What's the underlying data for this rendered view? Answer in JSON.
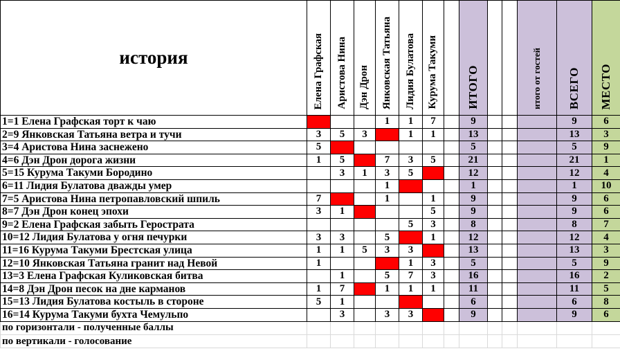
{
  "title": "история",
  "voters": [
    "Елена Графская",
    "Аристова Нина",
    "Дэн Дрон",
    "Янковская Татьяна",
    "Лидия Булатова",
    "Курума Такуми"
  ],
  "columns": {
    "itogo": "ИТОГО",
    "guests": "итого от гостей",
    "vsego": "ВСЕГО",
    "mesto": "МЕСТО"
  },
  "rows": [
    {
      "label": "1=1 Елена Графская торт к чаю",
      "votes": [
        "RED",
        "",
        "",
        "1",
        "1",
        "7"
      ],
      "itogo": "9",
      "guests": "",
      "vsego": "9",
      "mesto": "6"
    },
    {
      "label": "2=9 Янковская Татьяна ветра и тучи",
      "votes": [
        "3",
        "5",
        "3",
        "RED",
        "1",
        "1"
      ],
      "itogo": "13",
      "guests": "",
      "vsego": "13",
      "mesto": "3"
    },
    {
      "label": "3=4 Аристова Нина заснежено",
      "votes": [
        "5",
        "RED",
        "",
        "",
        "",
        ""
      ],
      "itogo": "5",
      "guests": "",
      "vsego": "5",
      "mesto": "9"
    },
    {
      "label": "4=6 Дэн Дрон дорога жизни",
      "votes": [
        "1",
        "5",
        "RED",
        "7",
        "3",
        "5"
      ],
      "itogo": "21",
      "guests": "",
      "vsego": "21",
      "mesto": "1"
    },
    {
      "label": "5=15 Курума Такуми Бородино",
      "votes": [
        "",
        "3",
        "1",
        "3",
        "5",
        "RED"
      ],
      "itogo": "12",
      "guests": "",
      "vsego": "12",
      "mesto": "4"
    },
    {
      "label": "6=11 Лидия Булатова дважды умер",
      "votes": [
        "",
        "",
        "",
        "1",
        "RED",
        ""
      ],
      "itogo": "1",
      "guests": "",
      "vsego": "1",
      "mesto": "10"
    },
    {
      "label": "7=5 Аристова Нина петропавловский шпиль",
      "votes": [
        "7",
        "RED",
        "",
        "1",
        "",
        "1"
      ],
      "itogo": "9",
      "guests": "",
      "vsego": "9",
      "mesto": "6"
    },
    {
      "label": "8=7 Дэн Дрон конец эпохи",
      "votes": [
        "3",
        "1",
        "RED",
        "",
        "",
        "5"
      ],
      "itogo": "9",
      "guests": "",
      "vsego": "9",
      "mesto": "6"
    },
    {
      "label": "9=2 Елена Графская забыть Герострата",
      "votes": [
        "",
        "",
        "",
        "",
        "5",
        "3"
      ],
      "itogo": "8",
      "guests": "",
      "vsego": "8",
      "mesto": "7"
    },
    {
      "label": "10=12 Лидия Булатова у огня печурки",
      "votes": [
        "3",
        "3",
        "",
        "5",
        "RED",
        "1"
      ],
      "itogo": "12",
      "guests": "",
      "vsego": "12",
      "mesto": "4"
    },
    {
      "label": "11=16 Курума Такуми Брестская улица",
      "votes": [
        "1",
        "1",
        "5",
        "3",
        "3",
        "RED"
      ],
      "itogo": "13",
      "guests": "",
      "vsego": "13",
      "mesto": "3"
    },
    {
      "label": "12=10 Янковская Татьяна гранит над Невой",
      "votes": [
        "1",
        "",
        "",
        "RED",
        "1",
        "3"
      ],
      "itogo": "5",
      "guests": "",
      "vsego": "5",
      "mesto": "9"
    },
    {
      "label": "13=3 Елена Графская Куликовская битва",
      "votes": [
        "",
        "1",
        "",
        "5",
        "7",
        "3"
      ],
      "itogo": "16",
      "guests": "",
      "vsego": "16",
      "mesto": "2"
    },
    {
      "label": "14=8 Дэн Дрон песок на дне карманов",
      "votes": [
        "1",
        "7",
        "RED",
        "1",
        "1",
        "1"
      ],
      "itogo": "11",
      "guests": "",
      "vsego": "11",
      "mesto": "5"
    },
    {
      "label": "15=13 Лидия Булатова костыль в стороне",
      "votes": [
        "5",
        "1",
        "",
        "",
        "RED",
        ""
      ],
      "itogo": "6",
      "guests": "",
      "vsego": "6",
      "mesto": "8"
    },
    {
      "label": "16=14 Курума Такуми бухта Чемульпо",
      "votes": [
        "",
        "3",
        "",
        "3",
        "3",
        "RED"
      ],
      "itogo": "9",
      "guests": "",
      "vsego": "9",
      "mesto": "6"
    }
  ],
  "footnotes": [
    "по горизонтали - полученные баллы",
    "по вертикали - голосование"
  ],
  "colors": {
    "red_fill": "#FF0000",
    "lavender_fill": "#CCC0DA",
    "green_fill": "#C4D79B"
  }
}
